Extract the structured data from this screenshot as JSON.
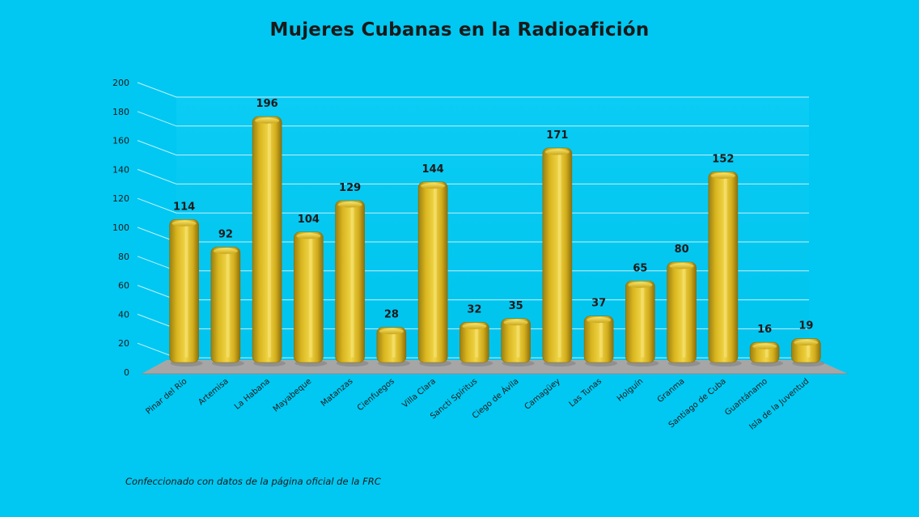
{
  "title": "Mujeres Cubanas en la Radioafición",
  "source_note": "Confeccionado con datos de la página oficial de la FRC",
  "colors": {
    "background": "#00c8f2",
    "bar": "#e8c52a",
    "floor": "#a6a6a6",
    "text": "#1a1a1a"
  },
  "chart_data": {
    "type": "bar",
    "title": "Mujeres Cubanas en la Radioafición",
    "categories": [
      "Pinar del Río",
      "Artemisa",
      "La Habana",
      "Mayabeque",
      "Matanzas",
      "Cienfuegos",
      "Villa Clara",
      "Sancti Spíritus",
      "Ciego de Ávila",
      "Camagüey",
      "Las Tunas",
      "Holguín",
      "Granma",
      "Santiago de Cuba",
      "Guantánamo",
      "Isla de la Juventud"
    ],
    "values": [
      114,
      92,
      196,
      104,
      129,
      28,
      144,
      32,
      35,
      171,
      37,
      65,
      80,
      152,
      16,
      19
    ],
    "ylim": [
      0,
      200
    ],
    "yticks": [
      "0",
      "20",
      "40",
      "60",
      "80",
      "100",
      "120",
      "140",
      "160",
      "180",
      "200"
    ],
    "xlabel": "",
    "ylabel": "",
    "grid": true,
    "legend": "none",
    "style": "3d-cylinder"
  }
}
